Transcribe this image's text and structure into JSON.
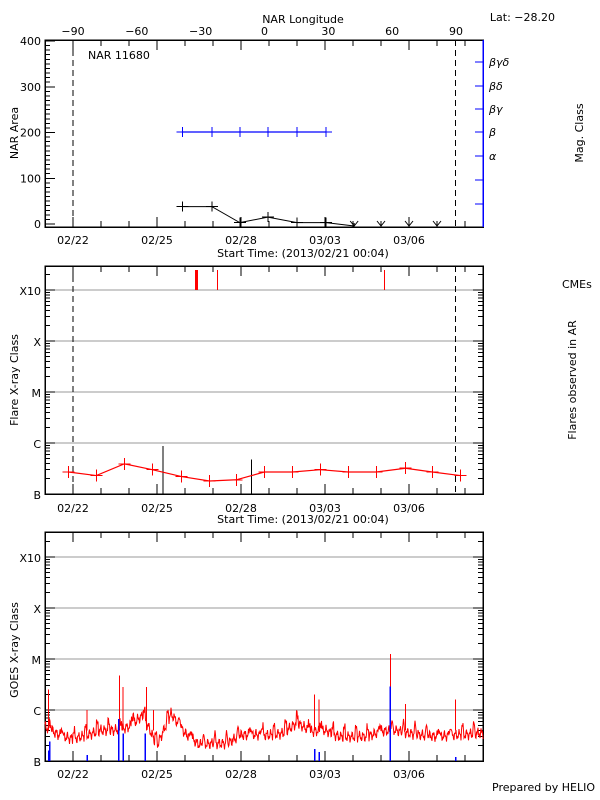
{
  "header": {
    "lat_label": "Lat: −28.20",
    "prepared_by": "Prepared by HELIO"
  },
  "colors": {
    "axis": "#000000",
    "mag_class": "#0000ff",
    "flare": "#ff0000",
    "cme": "#ff0000",
    "grid": "#999999",
    "goes_flare": "#0000ff"
  },
  "chart_data": [
    {
      "type": "line",
      "title": "NAR 11680",
      "xlabel": "Start Time: (2013/02/21 00:04)",
      "top_xlabel": "NAR Longitude",
      "ylabel": "NAR Area",
      "right_ylabel": "Mag. Class",
      "x_range": [
        "2013-02-21T00:00",
        "2013-03-08T15:00"
      ],
      "x_tick_labels": [
        {
          "label": "02/22",
          "t": "2013-02-22T00:00"
        },
        {
          "label": "02/25",
          "t": "2013-02-25T00:00"
        },
        {
          "label": "02/28",
          "t": "2013-02-28T00:00"
        },
        {
          "label": "03/03",
          "t": "2013-03-03T00:00"
        },
        {
          "label": "03/06",
          "t": "2013-03-06T00:00"
        }
      ],
      "longitude_ticks": [
        -90,
        -60,
        -30,
        0,
        30,
        60,
        90
      ],
      "limb_lines": [
        {
          "t": "2013-02-22T00:00",
          "longitude": -90
        },
        {
          "t": "2013-03-07T16:00",
          "longitude": 90
        }
      ],
      "ylim": [
        0,
        400
      ],
      "y_ticks": [
        0,
        100,
        200,
        300,
        400
      ],
      "mag_class_labels": [
        "βγδ",
        "βδ",
        "βγ",
        "β",
        "α"
      ],
      "area_series": [
        {
          "t": "2013-02-25T22:00",
          "v": 38
        },
        {
          "t": "2013-02-26T23:00",
          "v": 38
        },
        {
          "t": "2013-02-27T23:00",
          "v": 3
        },
        {
          "t": "2013-02-28T23:00",
          "v": 15
        },
        {
          "t": "2013-03-02T00:00",
          "v": 3
        },
        {
          "t": "2013-03-03T01:00",
          "v": 3
        }
      ],
      "area_missing": [
        "2013-03-04T01:00",
        "2013-03-05T00:00",
        "2013-03-06T00:00",
        "2013-03-07T00:00"
      ],
      "mag_class_series": [
        {
          "t": "2013-02-25T22:00",
          "v": "β"
        },
        {
          "t": "2013-02-26T23:00",
          "v": "β"
        },
        {
          "t": "2013-02-27T23:00",
          "v": "β"
        },
        {
          "t": "2013-02-28T23:00",
          "v": "β"
        },
        {
          "t": "2013-03-02T00:00",
          "v": "β"
        },
        {
          "t": "2013-03-03T01:00",
          "v": "β"
        }
      ]
    },
    {
      "type": "line",
      "xlabel": "Start Time: (2013/02/21 00:04)",
      "ylabel": "Flare X-ray Class",
      "right_ylabel": "Flares observed in AR",
      "cme_label": "CMEs",
      "y_scale": "log",
      "y_class_ticks": [
        {
          "label": "B",
          "flux": 1e-07
        },
        {
          "label": "C",
          "flux": 1e-06
        },
        {
          "label": "M",
          "flux": 1e-05
        },
        {
          "label": "X",
          "flux": 0.0001
        },
        {
          "label": "X10",
          "flux": 0.001
        }
      ],
      "ylim": [
        1e-07,
        0.003
      ],
      "grid": true,
      "limb_lines": [
        "2013-02-22T00:00",
        "2013-03-07T16:00"
      ],
      "background_series": [
        {
          "t": "2013-02-21T20:00",
          "flux": 2.7e-07
        },
        {
          "t": "2013-02-22T20:00",
          "flux": 2.3e-07
        },
        {
          "t": "2013-02-23T20:00",
          "flux": 3.9e-07
        },
        {
          "t": "2013-02-24T20:00",
          "flux": 3e-07
        },
        {
          "t": "2013-02-25T21:00",
          "flux": 2.2e-07
        },
        {
          "t": "2013-02-26T21:00",
          "flux": 1.8e-07
        },
        {
          "t": "2013-02-27T20:00",
          "flux": 1.9e-07
        },
        {
          "t": "2013-02-28T20:00",
          "flux": 2.7e-07
        },
        {
          "t": "2013-03-01T20:00",
          "flux": 2.7e-07
        },
        {
          "t": "2013-03-02T20:00",
          "flux": 3e-07
        },
        {
          "t": "2013-03-03T20:00",
          "flux": 2.7e-07
        },
        {
          "t": "2013-03-04T20:00",
          "flux": 2.7e-07
        },
        {
          "t": "2013-03-05T21:00",
          "flux": 3.2e-07
        },
        {
          "t": "2013-03-06T20:00",
          "flux": 2.7e-07
        },
        {
          "t": "2013-03-07T20:00",
          "flux": 2.3e-07
        }
      ],
      "flares": [
        {
          "t": "2013-02-25T05:00",
          "flux": 8.7e-07
        },
        {
          "t": "2013-02-28T09:00",
          "flux": 4.7e-07
        }
      ],
      "cmes": [
        {
          "t": "2013-02-26T10:00",
          "wide": true
        },
        {
          "t": "2013-02-27T04:00",
          "wide": false
        },
        {
          "t": "2013-03-05T03:00",
          "wide": false
        }
      ]
    },
    {
      "type": "line",
      "ylabel": "GOES X-ray Class",
      "y_scale": "log",
      "y_class_ticks": [
        {
          "label": "B",
          "flux": 1e-07
        },
        {
          "label": "C",
          "flux": 1e-06
        },
        {
          "label": "M",
          "flux": 1e-05
        },
        {
          "label": "X",
          "flux": 0.0001
        },
        {
          "label": "X10",
          "flux": 0.001
        }
      ],
      "ylim": [
        1e-07,
        0.003
      ],
      "grid": true,
      "goes_series": [
        [
          "2013-02-21T00:00",
          4.7e-07
        ],
        [
          "2013-02-21T12:00",
          3.2e-07
        ],
        [
          "2013-02-22T00:00",
          2.7e-07
        ],
        [
          "2013-02-22T12:00",
          3.2e-07
        ],
        [
          "2013-02-23T00:00",
          4e-07
        ],
        [
          "2013-02-23T12:00",
          4e-07
        ],
        [
          "2013-02-24T00:00",
          4.7e-07
        ],
        [
          "2013-02-24T12:00",
          7.9e-07
        ],
        [
          "2013-02-25T00:00",
          2e-07
        ],
        [
          "2013-02-25T12:00",
          8.5e-07
        ],
        [
          "2013-02-26T00:00",
          3.5e-07
        ],
        [
          "2013-02-26T12:00",
          2.1e-07
        ],
        [
          "2013-02-27T00:00",
          2.2e-07
        ],
        [
          "2013-02-27T12:00",
          2.2e-07
        ],
        [
          "2013-02-28T00:00",
          3.2e-07
        ],
        [
          "2013-02-28T12:00",
          3.3e-07
        ],
        [
          "2013-03-01T00:00",
          3.2e-07
        ],
        [
          "2013-03-01T12:00",
          3.5e-07
        ],
        [
          "2013-03-02T00:00",
          5.6e-07
        ],
        [
          "2013-03-02T12:00",
          3.8e-07
        ],
        [
          "2013-03-03T00:00",
          4e-07
        ],
        [
          "2013-03-03T12:00",
          3e-07
        ],
        [
          "2013-03-04T00:00",
          3e-07
        ],
        [
          "2013-03-04T12:00",
          3e-07
        ],
        [
          "2013-03-05T00:00",
          3.8e-07
        ],
        [
          "2013-03-05T12:00",
          4e-07
        ],
        [
          "2013-03-06T00:00",
          3.5e-07
        ],
        [
          "2013-03-06T12:00",
          3.2e-07
        ],
        [
          "2013-03-07T00:00",
          3e-07
        ],
        [
          "2013-03-07T12:00",
          3.2e-07
        ],
        [
          "2013-03-08T00:00",
          3.3e-07
        ],
        [
          "2013-03-08T12:00",
          3.5e-07
        ]
      ],
      "goes_peaks": [
        [
          "2013-02-21T03:00",
          2.5e-06
        ],
        [
          "2013-02-22T12:00",
          1e-06
        ],
        [
          "2013-02-23T16:00",
          4.8e-06
        ],
        [
          "2013-02-23T19:00",
          2.8e-06
        ],
        [
          "2013-02-24T15:00",
          2.8e-06
        ],
        [
          "2013-02-24T21:00",
          1e-06
        ],
        [
          "2013-03-02T15:00",
          2e-06
        ],
        [
          "2013-03-02T19:00",
          1.6e-06
        ],
        [
          "2013-03-05T08:00",
          1.26e-05
        ],
        [
          "2013-03-05T21:00",
          1.3e-06
        ],
        [
          "2013-03-07T16:00",
          1.6e-06
        ]
      ],
      "flare_markers": [
        [
          "2013-02-21T03:00",
          1.6e-07
        ],
        [
          "2013-02-21T04:00",
          2.4e-07
        ],
        [
          "2013-02-22T12:00",
          1.3e-07
        ],
        [
          "2013-02-23T15:00",
          6.6e-07
        ],
        [
          "2013-02-23T19:00",
          3.5e-07
        ],
        [
          "2013-02-24T14:00",
          3.5e-07
        ],
        [
          "2013-03-02T15:00",
          1.7e-07
        ],
        [
          "2013-03-02T19:00",
          1.5e-07
        ],
        [
          "2013-03-05T08:00",
          2.9e-06
        ],
        [
          "2013-03-07T16:00",
          1.2e-07
        ]
      ]
    }
  ]
}
